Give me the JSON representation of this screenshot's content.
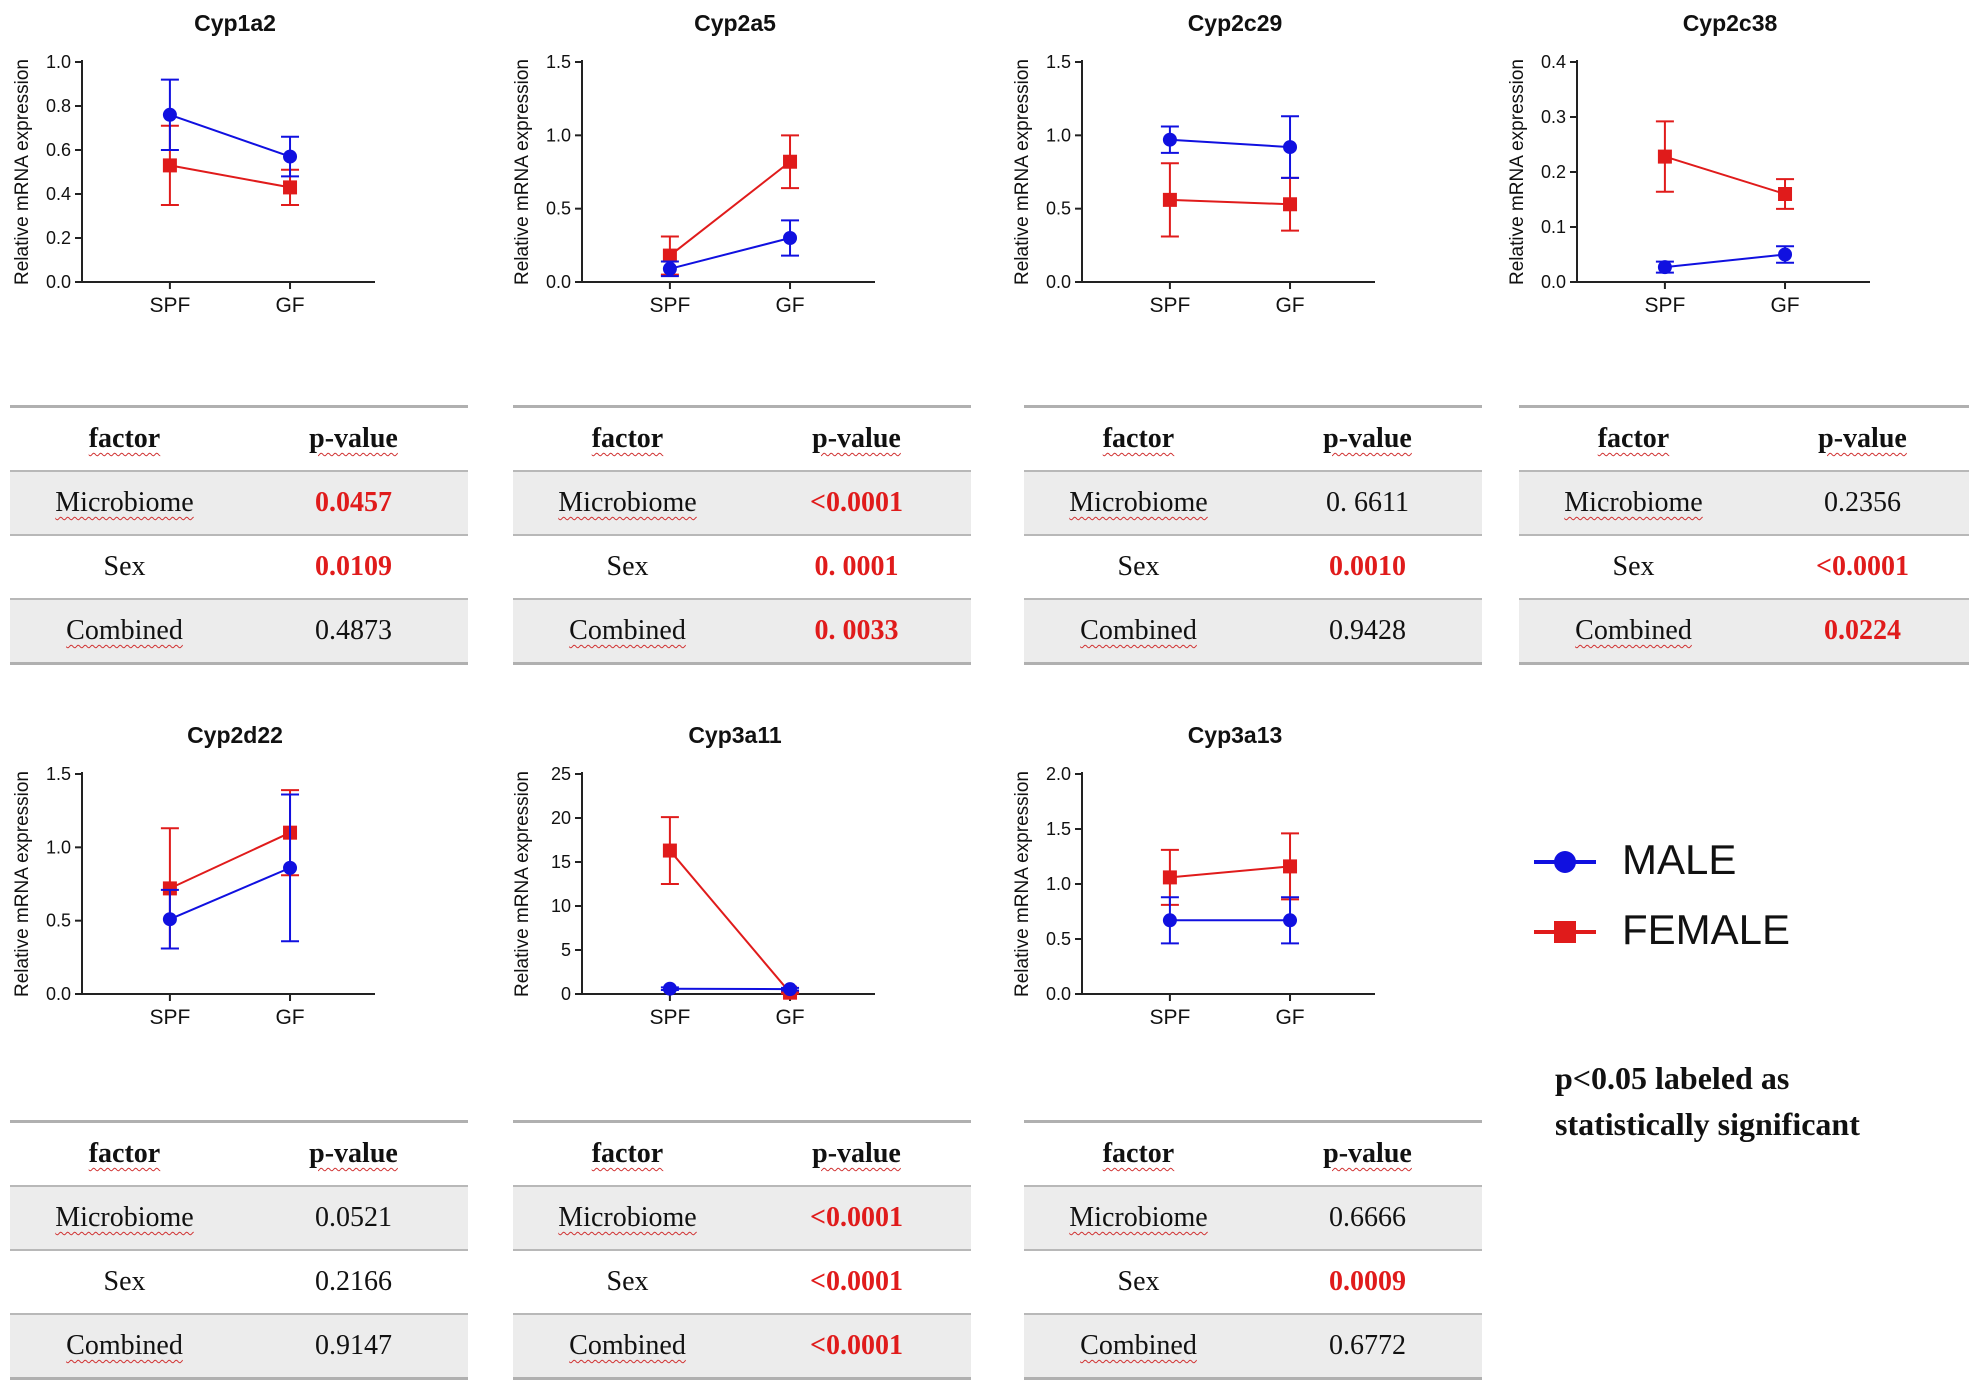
{
  "colors": {
    "male": "#1010e0",
    "female": "#e01b1b",
    "significant": "#e01b1b"
  },
  "y_axis_label": "Relative mRNA expression",
  "table_headers": {
    "factor": "factor",
    "pvalue": "p-value"
  },
  "legend": {
    "male": "MALE",
    "female": "FEMALE"
  },
  "note": {
    "line1": "p<0.05 labeled as",
    "line2": "statistically significant"
  },
  "chart_data": [
    {
      "type": "line",
      "title": "Cyp1a2",
      "categories": [
        "SPF",
        "GF"
      ],
      "ylim": [
        0,
        1.0
      ],
      "yticks": [
        "0.0",
        "0.2",
        "0.4",
        "0.6",
        "0.8",
        "1.0"
      ],
      "series": [
        {
          "name": "MALE",
          "values": [
            0.76,
            0.57
          ],
          "errors": [
            0.16,
            0.09
          ],
          "marker": "circle"
        },
        {
          "name": "FEMALE",
          "values": [
            0.53,
            0.43
          ],
          "errors": [
            0.18,
            0.08
          ],
          "marker": "square"
        }
      ],
      "table": [
        {
          "factor": "Microbiome",
          "p": "0.0457",
          "significant": true
        },
        {
          "factor": "Sex",
          "p": "0.0109",
          "significant": true
        },
        {
          "factor": "Combined",
          "p": "0.4873",
          "significant": false
        }
      ]
    },
    {
      "type": "line",
      "title": "Cyp2a5",
      "categories": [
        "SPF",
        "GF"
      ],
      "ylim": [
        0,
        1.5
      ],
      "yticks": [
        "0.0",
        "0.5",
        "1.0",
        "1.5"
      ],
      "series": [
        {
          "name": "MALE",
          "values": [
            0.09,
            0.3
          ],
          "errors": [
            0.05,
            0.12
          ],
          "marker": "circle"
        },
        {
          "name": "FEMALE",
          "values": [
            0.18,
            0.82
          ],
          "errors": [
            0.13,
            0.18
          ],
          "marker": "square"
        }
      ],
      "table": [
        {
          "factor": "Microbiome",
          "p": "<0.0001",
          "significant": true
        },
        {
          "factor": "Sex",
          "p": "0. 0001",
          "significant": true
        },
        {
          "factor": "Combined",
          "p": "0. 0033",
          "significant": true
        }
      ]
    },
    {
      "type": "line",
      "title": "Cyp2c29",
      "categories": [
        "SPF",
        "GF"
      ],
      "ylim": [
        0,
        1.5
      ],
      "yticks": [
        "0.0",
        "0.5",
        "1.0",
        "1.5"
      ],
      "series": [
        {
          "name": "MALE",
          "values": [
            0.97,
            0.92
          ],
          "errors": [
            0.09,
            0.21
          ],
          "marker": "circle"
        },
        {
          "name": "FEMALE",
          "values": [
            0.56,
            0.53
          ],
          "errors": [
            0.25,
            0.18
          ],
          "marker": "square"
        }
      ],
      "table": [
        {
          "factor": "Microbiome",
          "p": "0. 6611",
          "significant": false
        },
        {
          "factor": "Sex",
          "p": "0.0010",
          "significant": true
        },
        {
          "factor": "Combined",
          "p": "0.9428",
          "significant": false
        }
      ]
    },
    {
      "type": "line",
      "title": "Cyp2c38",
      "categories": [
        "SPF",
        "GF"
      ],
      "ylim": [
        0,
        0.4
      ],
      "yticks": [
        "0.0",
        "0.1",
        "0.2",
        "0.3",
        "0.4"
      ],
      "series": [
        {
          "name": "MALE",
          "values": [
            0.027,
            0.05
          ],
          "errors": [
            0.01,
            0.015
          ],
          "marker": "circle"
        },
        {
          "name": "FEMALE",
          "values": [
            0.228,
            0.16
          ],
          "errors": [
            0.064,
            0.027
          ],
          "marker": "square"
        }
      ],
      "table": [
        {
          "factor": "Microbiome",
          "p": "0.2356",
          "significant": false
        },
        {
          "factor": "Sex",
          "p": "<0.0001",
          "significant": true
        },
        {
          "factor": "Combined",
          "p": "0.0224",
          "significant": true
        }
      ]
    },
    {
      "type": "line",
      "title": "Cyp2d22",
      "categories": [
        "SPF",
        "GF"
      ],
      "ylim": [
        0,
        1.5
      ],
      "yticks": [
        "0.0",
        "0.5",
        "1.0",
        "1.5"
      ],
      "series": [
        {
          "name": "MALE",
          "values": [
            0.51,
            0.86
          ],
          "errors": [
            0.2,
            0.5
          ],
          "marker": "circle"
        },
        {
          "name": "FEMALE",
          "values": [
            0.72,
            1.1
          ],
          "errors": [
            0.41,
            0.29
          ],
          "marker": "square"
        }
      ],
      "table": [
        {
          "factor": "Microbiome",
          "p": "0.0521",
          "significant": false
        },
        {
          "factor": "Sex",
          "p": "0.2166",
          "significant": false
        },
        {
          "factor": "Combined",
          "p": "0.9147",
          "significant": false
        }
      ]
    },
    {
      "type": "line",
      "title": "Cyp3a11",
      "categories": [
        "SPF",
        "GF"
      ],
      "ylim": [
        0,
        25
      ],
      "yticks": [
        "0",
        "5",
        "10",
        "15",
        "20",
        "25"
      ],
      "series": [
        {
          "name": "MALE",
          "values": [
            0.6,
            0.55
          ],
          "errors": [
            0.15,
            0.15
          ],
          "marker": "circle"
        },
        {
          "name": "FEMALE",
          "values": [
            16.3,
            0.15
          ],
          "errors": [
            3.8,
            0.1
          ],
          "marker": "square"
        }
      ],
      "table": [
        {
          "factor": "Microbiome",
          "p": "<0.0001",
          "significant": true
        },
        {
          "factor": "Sex",
          "p": "<0.0001",
          "significant": true
        },
        {
          "factor": "Combined",
          "p": "<0.0001",
          "significant": true
        }
      ]
    },
    {
      "type": "line",
      "title": "Cyp3a13",
      "categories": [
        "SPF",
        "GF"
      ],
      "ylim": [
        0,
        2.0
      ],
      "yticks": [
        "0.0",
        "0.5",
        "1.0",
        "1.5",
        "2.0"
      ],
      "series": [
        {
          "name": "MALE",
          "values": [
            0.67,
            0.67
          ],
          "errors": [
            0.21,
            0.21
          ],
          "marker": "circle"
        },
        {
          "name": "FEMALE",
          "values": [
            1.06,
            1.16
          ],
          "errors": [
            0.25,
            0.3
          ],
          "marker": "square"
        }
      ],
      "table": [
        {
          "factor": "Microbiome",
          "p": "0.6666",
          "significant": false
        },
        {
          "factor": "Sex",
          "p": "0.0009",
          "significant": true
        },
        {
          "factor": "Combined",
          "p": "0.6772",
          "significant": false
        }
      ]
    }
  ]
}
